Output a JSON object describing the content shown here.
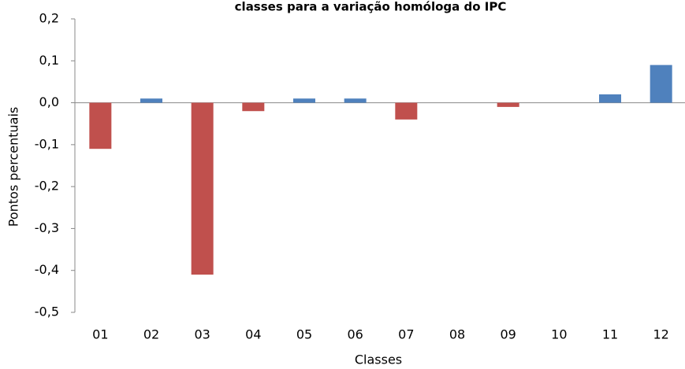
{
  "chart_data": {
    "type": "bar",
    "title": "classes para a variação homóloga do IPC",
    "x_label": "Classes",
    "y_label": "Pontos percentuais",
    "categories": [
      "01",
      "02",
      "03",
      "04",
      "05",
      "06",
      "07",
      "08",
      "09",
      "10",
      "11",
      "12"
    ],
    "values": [
      -0.11,
      0.01,
      -0.41,
      -0.02,
      0.01,
      0.01,
      -0.04,
      0,
      -0.01,
      0,
      0.02,
      0.09
    ],
    "colors": [
      "#c0504d",
      "#4f81bd",
      "#c0504d",
      "#c0504d",
      "#4f81bd",
      "#4f81bd",
      "#c0504d",
      "#4f81bd",
      "#c0504d",
      "#4f81bd",
      "#4f81bd",
      "#4f81bd"
    ],
    "ylim": [
      -0.5,
      0.2
    ],
    "yticks": [
      {
        "value": 0.2,
        "label": "0,2"
      },
      {
        "value": 0.1,
        "label": "0,1"
      },
      {
        "value": 0,
        "label": "0,0"
      },
      {
        "value": -0.1,
        "label": "-0,1"
      },
      {
        "value": -0.2,
        "label": "-0,2"
      },
      {
        "value": -0.3,
        "label": "-0,3"
      },
      {
        "value": -0.4,
        "label": "-0,4"
      },
      {
        "value": -0.5,
        "label": "-0,5"
      }
    ],
    "grid": false
  }
}
